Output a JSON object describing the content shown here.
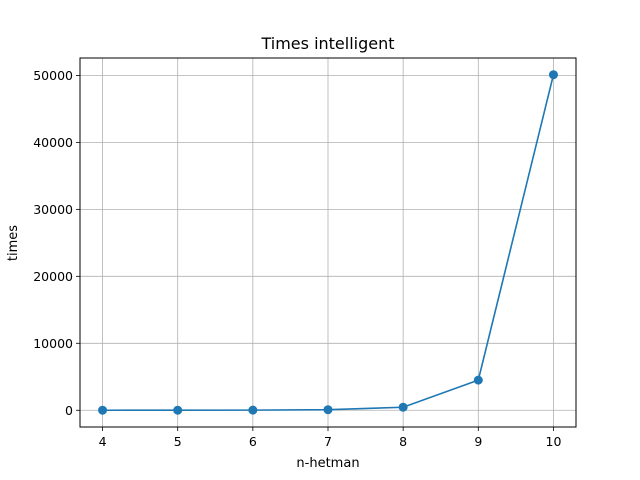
{
  "chart_data": {
    "type": "line",
    "title": "Times intelligent",
    "xlabel": "n-hetman",
    "ylabel": "times",
    "x": [
      4,
      5,
      6,
      7,
      8,
      9,
      10
    ],
    "series": [
      {
        "values": [
          2,
          5,
          20,
          80,
          450,
          4500,
          50100
        ],
        "color": "#1f77b4",
        "marker": "circle"
      }
    ],
    "xlim": [
      3.7,
      10.3
    ],
    "ylim": [
      -2500,
      52600
    ],
    "xticks": [
      4,
      5,
      6,
      7,
      8,
      9,
      10
    ],
    "yticks": [
      0,
      10000,
      20000,
      30000,
      40000,
      50000
    ],
    "grid": true,
    "colors": {
      "grid": "#b0b0b0",
      "axes": "#000000"
    }
  }
}
